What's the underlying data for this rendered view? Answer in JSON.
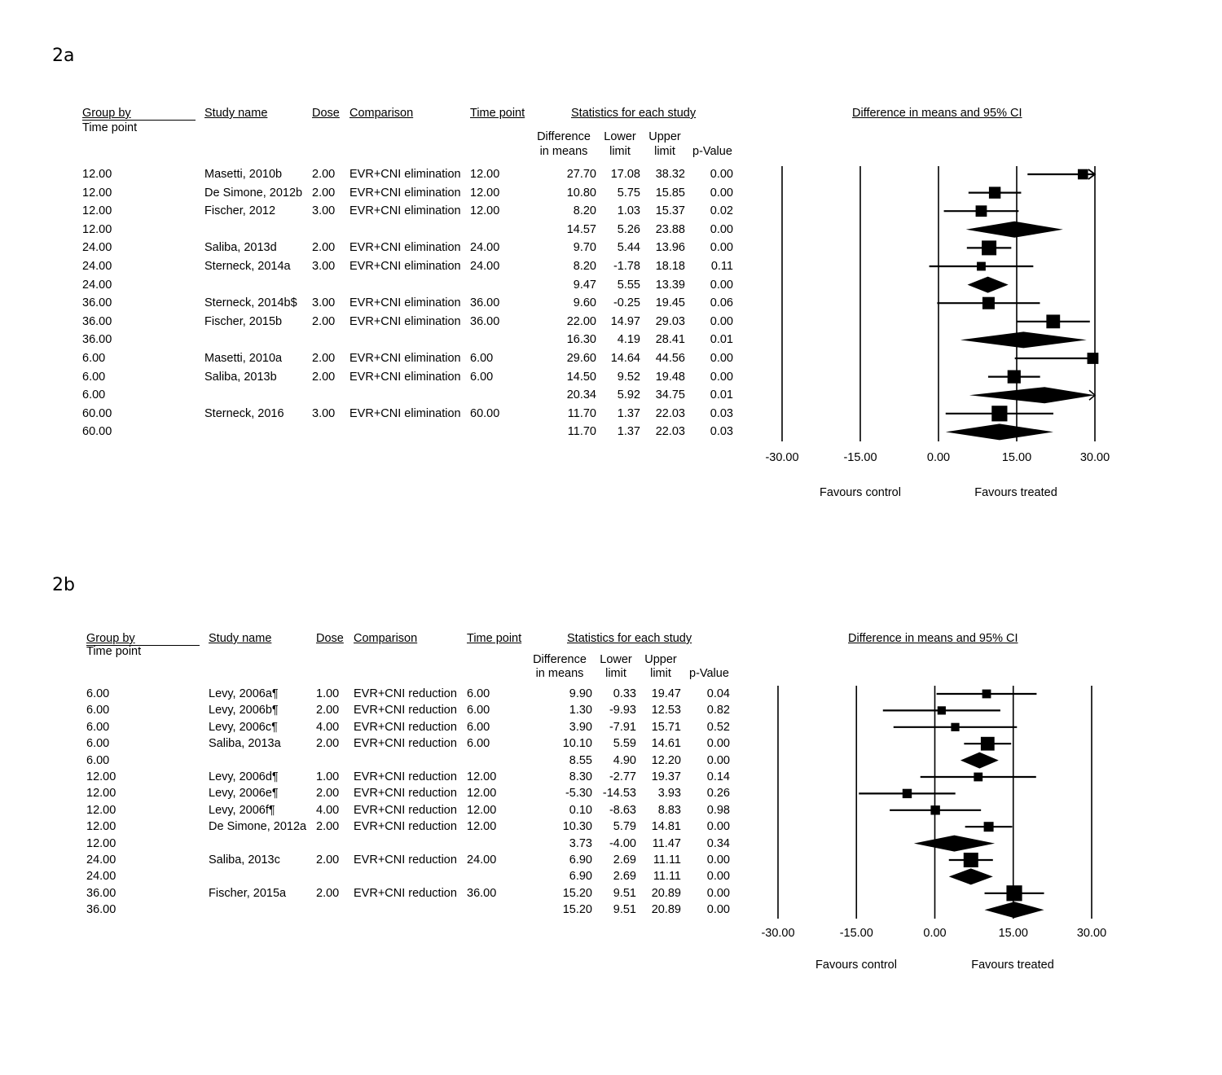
{
  "chart_data": [
    {
      "type": "forest",
      "panel_label": "2a",
      "headers": {
        "group_by": "Group by",
        "time_point_sub": "Time point",
        "study_name": "Study name",
        "dose": "Dose",
        "comparison": "Comparison",
        "time_point": "Time point",
        "stats_title": "Statistics for each study",
        "diff": [
          "Difference",
          "in means"
        ],
        "lower": [
          "Lower",
          "limit"
        ],
        "upper": [
          "Upper",
          "limit"
        ],
        "pvalue": "p-Value",
        "plot_title": "Difference in means and 95% CI"
      },
      "rows": [
        {
          "group": "12.00",
          "study": "Masetti, 2010b",
          "dose": "2.00",
          "comparison": "EVR+CNI elimination",
          "time": "12.00",
          "diff": "27.70",
          "lower": "17.08",
          "upper": "38.32",
          "p": "0.00",
          "kind": "study",
          "weight": 0.55
        },
        {
          "group": "12.00",
          "study": "De Simone, 2012b",
          "dose": "2.00",
          "comparison": "EVR+CNI elimination",
          "time": "12.00",
          "diff": "10.80",
          "lower": "5.75",
          "upper": "15.85",
          "p": "0.00",
          "kind": "study",
          "weight": 0.7
        },
        {
          "group": "12.00",
          "study": "Fischer, 2012",
          "dose": "3.00",
          "comparison": "EVR+CNI elimination",
          "time": "12.00",
          "diff": "8.20",
          "lower": "1.03",
          "upper": "15.37",
          "p": "0.02",
          "kind": "study",
          "weight": 0.65
        },
        {
          "group": "12.00",
          "study": "",
          "dose": "",
          "comparison": "",
          "time": "",
          "diff": "14.57",
          "lower": "5.26",
          "upper": "23.88",
          "p": "0.00",
          "kind": "summary"
        },
        {
          "group": "24.00",
          "study": "Saliba, 2013d",
          "dose": "2.00",
          "comparison": "EVR+CNI elimination",
          "time": "24.00",
          "diff": "9.70",
          "lower": "5.44",
          "upper": "13.96",
          "p": "0.00",
          "kind": "study",
          "weight": 1.0
        },
        {
          "group": "24.00",
          "study": "Sterneck, 2014a",
          "dose": "3.00",
          "comparison": "EVR+CNI elimination",
          "time": "24.00",
          "diff": "8.20",
          "lower": "-1.78",
          "upper": "18.18",
          "p": "0.11",
          "kind": "study",
          "weight": 0.4
        },
        {
          "group": "24.00",
          "study": "",
          "dose": "",
          "comparison": "",
          "time": "",
          "diff": "9.47",
          "lower": "5.55",
          "upper": "13.39",
          "p": "0.00",
          "kind": "summary"
        },
        {
          "group": "36.00",
          "study": "Sterneck, 2014b$",
          "dose": "3.00",
          "comparison": "EVR+CNI elimination",
          "time": "36.00",
          "diff": "9.60",
          "lower": "-0.25",
          "upper": "19.45",
          "p": "0.06",
          "kind": "study",
          "weight": 0.75
        },
        {
          "group": "36.00",
          "study": "Fischer, 2015b",
          "dose": "2.00",
          "comparison": "EVR+CNI elimination",
          "time": "36.00",
          "diff": "22.00",
          "lower": "14.97",
          "upper": "29.03",
          "p": "0.00",
          "kind": "study",
          "weight": 0.9
        },
        {
          "group": "36.00",
          "study": "",
          "dose": "",
          "comparison": "",
          "time": "",
          "diff": "16.30",
          "lower": "4.19",
          "upper": "28.41",
          "p": "0.01",
          "kind": "summary"
        },
        {
          "group": "6.00",
          "study": "Masetti, 2010a",
          "dose": "2.00",
          "comparison": "EVR+CNI elimination",
          "time": "6.00",
          "diff": "29.60",
          "lower": "14.64",
          "upper": "44.56",
          "p": "0.00",
          "kind": "study",
          "weight": 0.65
        },
        {
          "group": "6.00",
          "study": "Saliba, 2013b",
          "dose": "2.00",
          "comparison": "EVR+CNI elimination",
          "time": "6.00",
          "diff": "14.50",
          "lower": "9.52",
          "upper": "19.48",
          "p": "0.00",
          "kind": "study",
          "weight": 0.85
        },
        {
          "group": "6.00",
          "study": "",
          "dose": "",
          "comparison": "",
          "time": "",
          "diff": "20.34",
          "lower": "5.92",
          "upper": "34.75",
          "p": "0.01",
          "kind": "summary"
        },
        {
          "group": "60.00",
          "study": "Sterneck, 2016",
          "dose": "3.00",
          "comparison": "EVR+CNI elimination",
          "time": "60.00",
          "diff": "11.70",
          "lower": "1.37",
          "upper": "22.03",
          "p": "0.03",
          "kind": "study",
          "weight": 1.1
        },
        {
          "group": "60.00",
          "study": "",
          "dose": "",
          "comparison": "",
          "time": "",
          "diff": "11.70",
          "lower": "1.37",
          "upper": "22.03",
          "p": "0.03",
          "kind": "summary"
        }
      ],
      "xlim": [
        -30,
        30
      ],
      "xticks": [
        "-30.00",
        "-15.00",
        "0.00",
        "15.00",
        "30.00"
      ],
      "favours_left": "Favours control",
      "favours_right": "Favours treated"
    },
    {
      "type": "forest",
      "panel_label": "2b",
      "headers": {
        "group_by": "Group by",
        "time_point_sub": "Time point",
        "study_name": "Study name",
        "dose": "Dose",
        "comparison": "Comparison",
        "time_point": "Time point",
        "stats_title": "Statistics for each study",
        "diff": [
          "Difference",
          "in means"
        ],
        "lower": [
          "Lower",
          "limit"
        ],
        "upper": [
          "Upper",
          "limit"
        ],
        "pvalue": "p-Value",
        "plot_title": "Difference in means and 95% CI"
      },
      "rows": [
        {
          "group": "6.00",
          "study": "Levy, 2006a¶",
          "dose": "1.00",
          "comparison": "EVR+CNI reduction",
          "time": "6.00",
          "diff": "9.90",
          "lower": "0.33",
          "upper": "19.47",
          "p": "0.04",
          "kind": "study",
          "weight": 0.4
        },
        {
          "group": "6.00",
          "study": "Levy, 2006b¶",
          "dose": "2.00",
          "comparison": "EVR+CNI reduction",
          "time": "6.00",
          "diff": "1.30",
          "lower": "-9.93",
          "upper": "12.53",
          "p": "0.82",
          "kind": "study",
          "weight": 0.35
        },
        {
          "group": "6.00",
          "study": "Levy, 2006c¶",
          "dose": "4.00",
          "comparison": "EVR+CNI reduction",
          "time": "6.00",
          "diff": "3.90",
          "lower": "-7.91",
          "upper": "15.71",
          "p": "0.52",
          "kind": "study",
          "weight": 0.35
        },
        {
          "group": "6.00",
          "study": "Saliba, 2013a",
          "dose": "2.00",
          "comparison": "EVR+CNI reduction",
          "time": "6.00",
          "diff": "10.10",
          "lower": "5.59",
          "upper": "14.61",
          "p": "0.00",
          "kind": "study",
          "weight": 0.9
        },
        {
          "group": "6.00",
          "study": "",
          "dose": "",
          "comparison": "",
          "time": "",
          "diff": "8.55",
          "lower": "4.90",
          "upper": "12.20",
          "p": "0.00",
          "kind": "summary"
        },
        {
          "group": "12.00",
          "study": "Levy, 2006d¶",
          "dose": "1.00",
          "comparison": "EVR+CNI reduction",
          "time": "12.00",
          "diff": "8.30",
          "lower": "-2.77",
          "upper": "19.37",
          "p": "0.14",
          "kind": "study",
          "weight": 0.4
        },
        {
          "group": "12.00",
          "study": "Levy, 2006e¶",
          "dose": "2.00",
          "comparison": "EVR+CNI reduction",
          "time": "12.00",
          "diff": "-5.30",
          "lower": "-14.53",
          "upper": "3.93",
          "p": "0.26",
          "kind": "study",
          "weight": 0.45
        },
        {
          "group": "12.00",
          "study": "Levy, 2006f¶",
          "dose": "4.00",
          "comparison": "EVR+CNI reduction",
          "time": "12.00",
          "diff": "0.10",
          "lower": "-8.63",
          "upper": "8.83",
          "p": "0.98",
          "kind": "study",
          "weight": 0.45
        },
        {
          "group": "12.00",
          "study": "De Simone, 2012a",
          "dose": "2.00",
          "comparison": "EVR+CNI reduction",
          "time": "12.00",
          "diff": "10.30",
          "lower": "5.79",
          "upper": "14.81",
          "p": "0.00",
          "kind": "study",
          "weight": 0.5
        },
        {
          "group": "12.00",
          "study": "",
          "dose": "",
          "comparison": "",
          "time": "",
          "diff": "3.73",
          "lower": "-4.00",
          "upper": "11.47",
          "p": "0.34",
          "kind": "summary"
        },
        {
          "group": "24.00",
          "study": "Saliba, 2013c",
          "dose": "2.00",
          "comparison": "EVR+CNI reduction",
          "time": "24.00",
          "diff": "6.90",
          "lower": "2.69",
          "upper": "11.11",
          "p": "0.00",
          "kind": "study",
          "weight": 1.0
        },
        {
          "group": "24.00",
          "study": "",
          "dose": "",
          "comparison": "",
          "time": "",
          "diff": "6.90",
          "lower": "2.69",
          "upper": "11.11",
          "p": "0.00",
          "kind": "summary"
        },
        {
          "group": "36.00",
          "study": "Fischer, 2015a",
          "dose": "2.00",
          "comparison": "EVR+CNI reduction",
          "time": "36.00",
          "diff": "15.20",
          "lower": "9.51",
          "upper": "20.89",
          "p": "0.00",
          "kind": "study",
          "weight": 1.1
        },
        {
          "group": "36.00",
          "study": "",
          "dose": "",
          "comparison": "",
          "time": "",
          "diff": "15.20",
          "lower": "9.51",
          "upper": "20.89",
          "p": "0.00",
          "kind": "summary"
        }
      ],
      "xlim": [
        -30,
        30
      ],
      "xticks": [
        "-30.00",
        "-15.00",
        "0.00",
        "15.00",
        "30.00"
      ],
      "favours_left": "Favours control",
      "favours_right": "Favours treated"
    }
  ]
}
